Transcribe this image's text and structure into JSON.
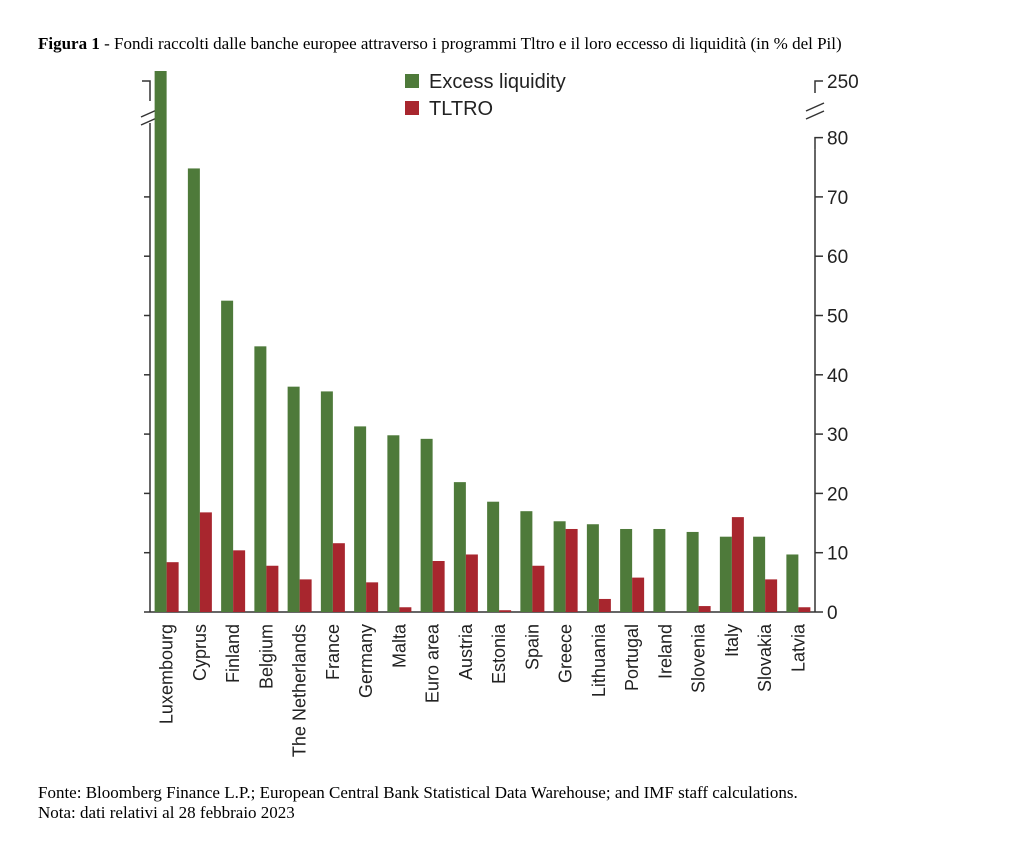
{
  "figure": {
    "label": "Figura 1",
    "title": " - Fondi raccolti dalle banche europee attraverso i programmi Tltro e il loro eccesso di liquidità (in % del Pil)"
  },
  "footer": {
    "source": "Fonte: Bloomberg Finance L.P.; European Central Bank Statistical Data Warehouse; and IMF staff calculations.",
    "note": "Nota: dati relativi al 28 febbraio 2023"
  },
  "chart_data": {
    "type": "bar",
    "title": "",
    "xlabel": "",
    "ylabel": "",
    "ylim": [
      0,
      80
    ],
    "y_axis_break": {
      "above": 80,
      "top_label": "250"
    },
    "yticks": [
      0,
      10,
      20,
      30,
      40,
      50,
      60,
      70,
      80
    ],
    "ytick_labels": [
      "0",
      "10",
      "20",
      "30",
      "40",
      "50",
      "60",
      "70",
      "80"
    ],
    "grid": false,
    "legend_position": "top-center",
    "categories": [
      "Luxembourg",
      "Cyprus",
      "Finland",
      "Belgium",
      "The Netherlands",
      "France",
      "Germany",
      "Malta",
      "Euro area",
      "Austria",
      "Estonia",
      "Spain",
      "Greece",
      "Lithuania",
      "Portugal",
      "Ireland",
      "Slovenia",
      "Italy",
      "Slovakia",
      "Latvia"
    ],
    "series": [
      {
        "name": "Excess liquidity",
        "color": "#4e7a3a",
        "values": [
          250,
          74.8,
          52.5,
          44.8,
          38,
          37.2,
          31.3,
          29.8,
          29.2,
          21.9,
          18.6,
          17,
          15.3,
          14.8,
          14,
          14,
          13.5,
          12.7,
          12.7,
          9.7
        ]
      },
      {
        "name": "TLTRO",
        "color": "#a8262e",
        "values": [
          8.4,
          16.8,
          10.4,
          7.8,
          5.5,
          11.6,
          5,
          0.8,
          8.6,
          9.7,
          0.3,
          7.8,
          14,
          2.2,
          5.8,
          0,
          1,
          16,
          5.5,
          0.8
        ]
      }
    ]
  }
}
